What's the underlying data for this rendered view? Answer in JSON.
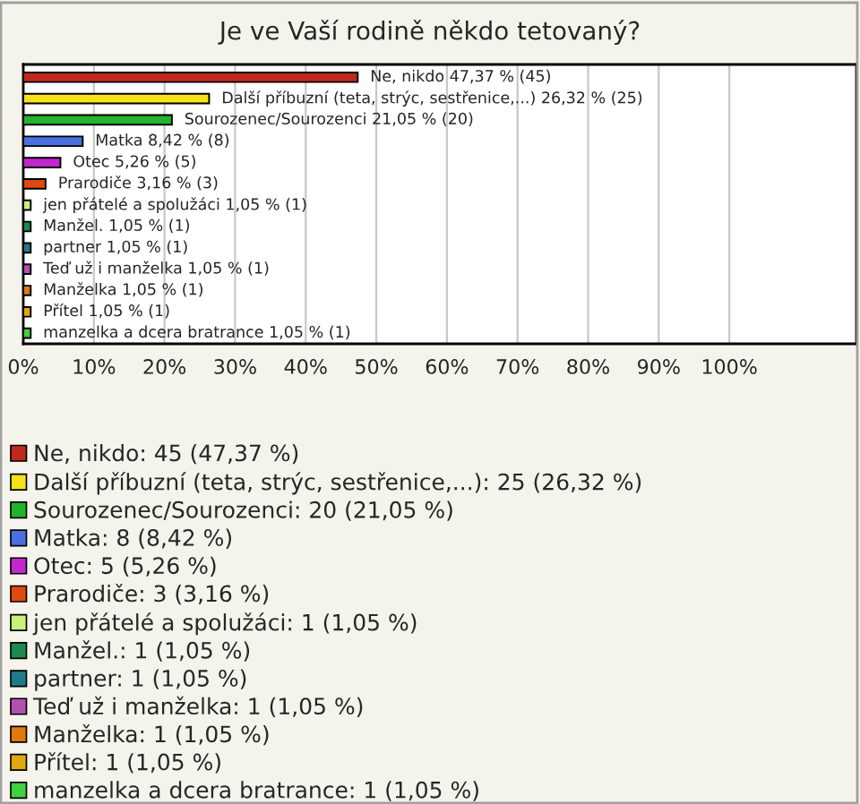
{
  "chart_data": {
    "type": "bar",
    "orientation": "horizontal",
    "title": "Je ve Vaší rodině někdo tetovaný?",
    "categories": [
      null,
      null,
      null,
      null,
      null,
      null,
      null,
      null,
      null,
      null,
      null,
      null,
      null
    ],
    "series": [
      {
        "name": "Ne, nikdo: 45 (47,37 %)",
        "color": "#c0281b",
        "values": [
          47.37,
          null,
          null,
          null,
          null,
          null,
          null,
          null,
          null,
          null,
          null,
          null,
          null
        ],
        "value_labels": [
          "Ne, nikdo 47,37 % (45)",
          null,
          null,
          null,
          null,
          null,
          null,
          null,
          null,
          null,
          null,
          null,
          null
        ]
      },
      {
        "name": "Další příbuzní (teta, strýc, sestřenice,...): 25 (26,32 %)",
        "color": "#f5e21a",
        "values": [
          null,
          26.32,
          null,
          null,
          null,
          null,
          null,
          null,
          null,
          null,
          null,
          null,
          null
        ],
        "value_labels": [
          null,
          "Další příbuzní (teta, strýc, sestřenice,...) 26,32 % (25)",
          null,
          null,
          null,
          null,
          null,
          null,
          null,
          null,
          null,
          null,
          null
        ]
      },
      {
        "name": "Sourozenec/Sourozenci: 20 (21,05 %)",
        "color": "#22b42a",
        "values": [
          null,
          null,
          21.05,
          null,
          null,
          null,
          null,
          null,
          null,
          null,
          null,
          null,
          null
        ],
        "value_labels": [
          null,
          null,
          "Sourozenec/Sourozenci 21,05 % (20)",
          null,
          null,
          null,
          null,
          null,
          null,
          null,
          null,
          null,
          null
        ]
      },
      {
        "name": "Matka: 8 (8,42 %)",
        "color": "#4a6fe0",
        "values": [
          null,
          null,
          null,
          8.42,
          null,
          null,
          null,
          null,
          null,
          null,
          null,
          null,
          null
        ],
        "value_labels": [
          null,
          null,
          null,
          "Matka 8,42 % (8)",
          null,
          null,
          null,
          null,
          null,
          null,
          null,
          null,
          null
        ]
      },
      {
        "name": "Otec: 5 (5,26 %)",
        "color": "#c227cf",
        "values": [
          null,
          null,
          null,
          null,
          5.26,
          null,
          null,
          null,
          null,
          null,
          null,
          null,
          null
        ],
        "value_labels": [
          null,
          null,
          null,
          null,
          "Otec 5,26 % (5)",
          null,
          null,
          null,
          null,
          null,
          null,
          null,
          null
        ]
      },
      {
        "name": "Prarodiče: 3 (3,16 %)",
        "color": "#e04a10",
        "values": [
          null,
          null,
          null,
          null,
          null,
          3.16,
          null,
          null,
          null,
          null,
          null,
          null,
          null
        ],
        "value_labels": [
          null,
          null,
          null,
          null,
          null,
          "Prarodiče 3,16 % (3)",
          null,
          null,
          null,
          null,
          null,
          null,
          null
        ]
      },
      {
        "name": "jen přátelé a spolužáci: 1 (1,05 %)",
        "color": "#c8f07a",
        "values": [
          null,
          null,
          null,
          null,
          null,
          null,
          1.05,
          null,
          null,
          null,
          null,
          null,
          null
        ],
        "value_labels": [
          null,
          null,
          null,
          null,
          null,
          null,
          "jen přátelé a spolužáci 1,05 % (1)",
          null,
          null,
          null,
          null,
          null,
          null
        ]
      },
      {
        "name": "Manžel.: 1 (1,05 %)",
        "color": "#1a8a50",
        "values": [
          null,
          null,
          null,
          null,
          null,
          null,
          null,
          1.05,
          null,
          null,
          null,
          null,
          null
        ],
        "value_labels": [
          null,
          null,
          null,
          null,
          null,
          null,
          null,
          "Manžel. 1,05 % (1)",
          null,
          null,
          null,
          null,
          null
        ]
      },
      {
        "name": "partner: 1 (1,05 %)",
        "color": "#1f7a8a",
        "values": [
          null,
          null,
          null,
          null,
          null,
          null,
          null,
          null,
          1.05,
          null,
          null,
          null,
          null
        ],
        "value_labels": [
          null,
          null,
          null,
          null,
          null,
          null,
          null,
          null,
          "partner 1,05 % (1)",
          null,
          null,
          null,
          null
        ]
      },
      {
        "name": "Teď už i manželka: 1 (1,05 %)",
        "color": "#b050b0",
        "values": [
          null,
          null,
          null,
          null,
          null,
          null,
          null,
          null,
          null,
          1.05,
          null,
          null,
          null
        ],
        "value_labels": [
          null,
          null,
          null,
          null,
          null,
          null,
          null,
          null,
          null,
          "Teď už i manželka 1,05 % (1)",
          null,
          null,
          null
        ]
      },
      {
        "name": "Manželka: 1 (1,05 %)",
        "color": "#e07a10",
        "values": [
          null,
          null,
          null,
          null,
          null,
          null,
          null,
          null,
          null,
          null,
          1.05,
          null,
          null
        ],
        "value_labels": [
          null,
          null,
          null,
          null,
          null,
          null,
          null,
          null,
          null,
          null,
          "Manželka 1,05 % (1)",
          null,
          null
        ]
      },
      {
        "name": "Přítel: 1 (1,05 %)",
        "color": "#e0a810",
        "values": [
          null,
          null,
          null,
          null,
          null,
          null,
          null,
          null,
          null,
          null,
          null,
          1.05,
          null
        ],
        "value_labels": [
          null,
          null,
          null,
          null,
          null,
          null,
          null,
          null,
          null,
          null,
          null,
          "Přítel 1,05 % (1)",
          null
        ]
      },
      {
        "name": "manzelka a dcera bratrance: 1 (1,05 %)",
        "color": "#40d040",
        "values": [
          null,
          null,
          null,
          null,
          null,
          null,
          null,
          null,
          null,
          null,
          null,
          null,
          1.05
        ],
        "value_labels": [
          null,
          null,
          null,
          null,
          null,
          null,
          null,
          null,
          null,
          null,
          null,
          null,
          "manzelka a dcera bratrance 1,05 % (1)"
        ]
      }
    ],
    "xlim": [
      0,
      118
    ],
    "xticks": [
      {
        "value": 0,
        "label": "0%"
      },
      {
        "value": 10,
        "label": "10%"
      },
      {
        "value": 20,
        "label": "20%"
      },
      {
        "value": 30,
        "label": "30%"
      },
      {
        "value": 40,
        "label": "40%"
      },
      {
        "value": 50,
        "label": "50%"
      },
      {
        "value": 60,
        "label": "60%"
      },
      {
        "value": 70,
        "label": "70%"
      },
      {
        "value": 80,
        "label": "80%"
      },
      {
        "value": 90,
        "label": "90%"
      },
      {
        "value": 100,
        "label": "100%"
      }
    ],
    "grid": "x",
    "legend": "bottom",
    "tick_labels": "x"
  }
}
